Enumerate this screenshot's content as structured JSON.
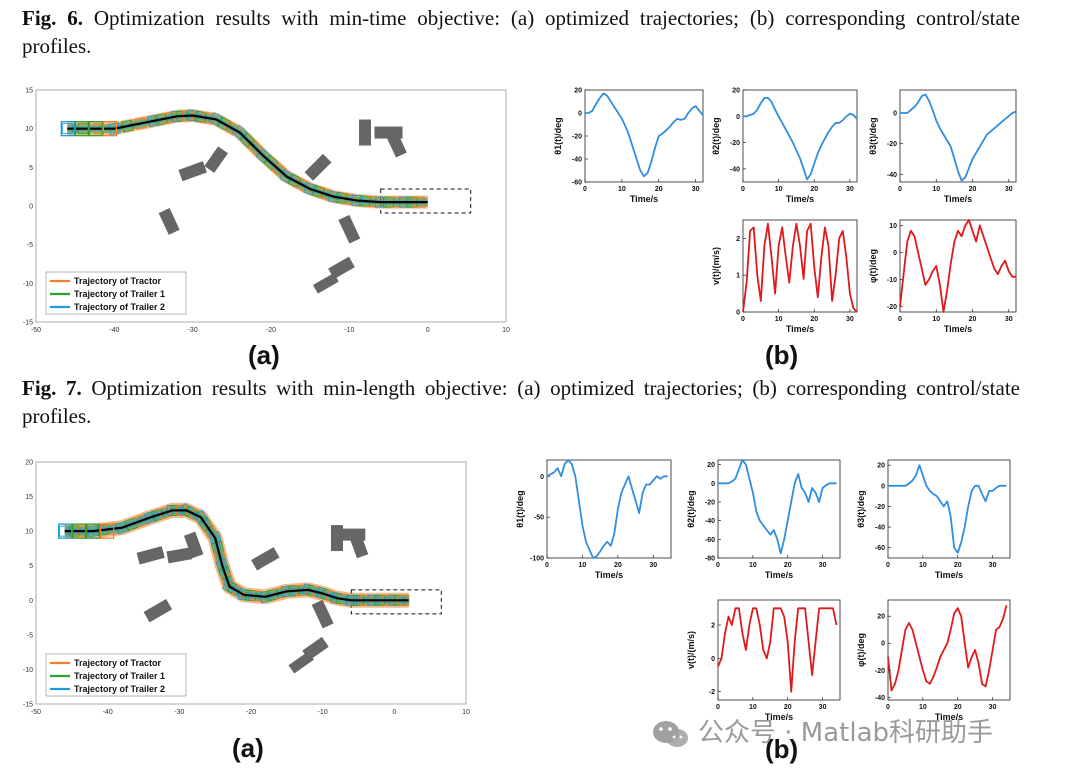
{
  "fig6": {
    "label": "Fig. 6.",
    "text": " Optimization results with min-time objective: (a) optimized trajectories; (b) corresponding control/state profiles.",
    "panel_a": "(a)",
    "panel_b": "(b)"
  },
  "fig7": {
    "label": "Fig. 7.",
    "text": " Optimization results with min-length objective: (a) optimized trajectories; (b) corresponding control/state profiles.",
    "panel_a": "(a)",
    "panel_b": "(b)"
  },
  "watermark": "公众号 · Matlab科研助手",
  "colors": {
    "tractor": "#f07f2a",
    "trailer1": "#2ca02c",
    "trailer2": "#1f9ad6",
    "path": "#000000",
    "obstacle": "#666666",
    "angle": "#2f8ee0",
    "control": "#e0191c"
  },
  "chart_data": [
    {
      "id": "fig6a",
      "type": "line",
      "title": "",
      "xlim": [
        -50,
        10
      ],
      "ylim": [
        -15,
        15
      ],
      "xticks": [
        "-50",
        "-40",
        "-30",
        "-20",
        "-10",
        "0",
        "10"
      ],
      "yticks": [
        "15",
        "10",
        "5",
        "0",
        "-5",
        "-10",
        "-15"
      ],
      "legend": [
        "Trajectory of Tractor",
        "Trajectory of Trailer 1",
        "Trajectory of Trailer 2"
      ],
      "path": {
        "x": [
          -46,
          -40,
          -35,
          -32,
          -30,
          -27,
          -24,
          -21,
          -18,
          -15,
          -12,
          -9,
          -6,
          -3,
          0
        ],
        "y": [
          10,
          10,
          11,
          11.6,
          11.7,
          11.2,
          9.5,
          6.5,
          3.8,
          2.2,
          1.2,
          0.7,
          0.5,
          0.5,
          0.5
        ]
      }
    },
    {
      "id": "fig7a",
      "type": "line",
      "title": "",
      "xlim": [
        -50,
        10
      ],
      "ylim": [
        -15,
        20
      ],
      "xticks": [
        "-50",
        "-40",
        "-30",
        "-20",
        "-10",
        "0",
        "10"
      ],
      "yticks": [
        "20",
        "15",
        "10",
        "5",
        "0",
        "-5",
        "-10",
        "-15"
      ],
      "legend": [
        "Trajectory of Tractor",
        "Trajectory of Trailer 1",
        "Trajectory of Trailer 2"
      ],
      "path": {
        "x": [
          -46,
          -42,
          -38,
          -34,
          -31,
          -29,
          -27,
          -25,
          -24,
          -23,
          -21,
          -18,
          -15,
          -12,
          -10,
          -8,
          -6,
          -3,
          0,
          2
        ],
        "y": [
          10,
          10,
          10.5,
          12,
          13,
          13,
          12,
          9,
          5,
          2,
          0.8,
          0.5,
          1.3,
          1.5,
          1,
          0.3,
          0,
          0,
          0,
          0
        ]
      }
    },
    {
      "id": "fig6b_theta1",
      "type": "line",
      "xlabel": "Time/s",
      "ylabel": "θ1(t)/deg",
      "xlim": [
        0,
        32
      ],
      "ylim": [
        -60,
        20
      ],
      "xticks": [
        "0",
        "10",
        "20",
        "30"
      ],
      "yticks": [
        "20",
        "0",
        "-20",
        "-40",
        "-60"
      ],
      "x": [
        0,
        1,
        2,
        3,
        4,
        5,
        6,
        7,
        8,
        9,
        10,
        11,
        12,
        13,
        14,
        15,
        16,
        17,
        18,
        19,
        20,
        21,
        22,
        23,
        24,
        25,
        26,
        27,
        28,
        29,
        30,
        31,
        32
      ],
      "y": [
        0,
        0,
        2,
        8,
        13,
        17,
        15,
        10,
        5,
        0,
        -5,
        -12,
        -20,
        -30,
        -40,
        -50,
        -55,
        -52,
        -42,
        -30,
        -20,
        -18,
        -15,
        -12,
        -8,
        -5,
        -6,
        -5,
        0,
        4,
        6,
        2,
        -2
      ]
    },
    {
      "id": "fig6b_theta2",
      "type": "line",
      "xlabel": "Time/s",
      "ylabel": "θ2(t)/deg",
      "xlim": [
        0,
        32
      ],
      "ylim": [
        -50,
        20
      ],
      "xticks": [
        "0",
        "10",
        "20",
        "30"
      ],
      "yticks": [
        "20",
        "0",
        "-20",
        "-40"
      ],
      "x": [
        0,
        1,
        2,
        3,
        4,
        5,
        6,
        7,
        8,
        9,
        10,
        11,
        12,
        13,
        14,
        15,
        16,
        17,
        18,
        19,
        20,
        21,
        22,
        23,
        24,
        25,
        26,
        27,
        28,
        29,
        30,
        31,
        32
      ],
      "y": [
        0,
        0,
        1,
        2,
        5,
        10,
        14,
        14,
        11,
        5,
        0,
        -5,
        -10,
        -15,
        -20,
        -26,
        -32,
        -40,
        -48,
        -44,
        -36,
        -28,
        -22,
        -17,
        -12,
        -8,
        -5,
        -5,
        -3,
        0,
        2,
        1,
        -2
      ]
    },
    {
      "id": "fig6b_theta3",
      "type": "line",
      "xlabel": "Time/s",
      "ylabel": "θ3(t)/deg",
      "xlim": [
        0,
        32
      ],
      "ylim": [
        -45,
        15
      ],
      "xticks": [
        "0",
        "10",
        "20",
        "30"
      ],
      "yticks": [
        "0",
        "-20",
        "-40"
      ],
      "x": [
        0,
        1,
        2,
        3,
        4,
        5,
        6,
        7,
        8,
        9,
        10,
        11,
        12,
        13,
        14,
        15,
        16,
        17,
        18,
        19,
        20,
        21,
        22,
        23,
        24,
        25,
        26,
        27,
        28,
        29,
        30,
        31,
        32
      ],
      "y": [
        0,
        0,
        0,
        2,
        4,
        7,
        11,
        12,
        8,
        2,
        -5,
        -10,
        -14,
        -18,
        -22,
        -30,
        -38,
        -44,
        -42,
        -36,
        -30,
        -26,
        -22,
        -18,
        -14,
        -12,
        -10,
        -8,
        -6,
        -4,
        -2,
        0,
        1
      ]
    },
    {
      "id": "fig6b_v",
      "type": "line",
      "xlabel": "Time/s",
      "ylabel": "v(t)/(m/s)",
      "xlim": [
        0,
        32
      ],
      "ylim": [
        0,
        2.5
      ],
      "xticks": [
        "0",
        "10",
        "20",
        "30"
      ],
      "yticks": [
        "2",
        "1",
        "0"
      ],
      "x": [
        0,
        1,
        2,
        3,
        4,
        5,
        6,
        7,
        8,
        9,
        10,
        11,
        12,
        13,
        14,
        15,
        16,
        17,
        18,
        19,
        20,
        21,
        22,
        23,
        24,
        25,
        26,
        27,
        28,
        29,
        30,
        31,
        32
      ],
      "y": [
        0,
        0.8,
        2.2,
        2.3,
        1,
        0.3,
        1.8,
        2.4,
        1.5,
        0.5,
        1.8,
        2.3,
        1.5,
        0.8,
        1.8,
        2.4,
        1.8,
        0.9,
        2.2,
        2.4,
        1.2,
        0.4,
        1.5,
        2.3,
        1.8,
        0.3,
        1,
        2,
        2.2,
        1.5,
        0.5,
        0.1,
        0
      ]
    },
    {
      "id": "fig6b_phi",
      "type": "line",
      "xlabel": "Time/s",
      "ylabel": "φ(t)/deg",
      "xlim": [
        0,
        32
      ],
      "ylim": [
        -22,
        12
      ],
      "xticks": [
        "0",
        "10",
        "20",
        "30"
      ],
      "yticks": [
        "10",
        "0",
        "-10",
        "-20"
      ],
      "x": [
        0,
        1,
        2,
        3,
        4,
        5,
        6,
        7,
        8,
        9,
        10,
        11,
        12,
        13,
        14,
        15,
        16,
        17,
        18,
        19,
        20,
        21,
        22,
        23,
        24,
        25,
        26,
        27,
        28,
        29,
        30,
        31,
        32
      ],
      "y": [
        -20,
        -8,
        4,
        8,
        6,
        0,
        -6,
        -12,
        -10,
        -7,
        -5,
        -12,
        -22,
        -14,
        -4,
        4,
        8,
        6,
        10,
        12,
        8,
        4,
        10,
        6,
        2,
        -2,
        -6,
        -8,
        -5,
        -3,
        -7,
        -9,
        -9
      ]
    },
    {
      "id": "fig7b_theta1",
      "type": "line",
      "xlabel": "Time/s",
      "ylabel": "θ1(t)/deg",
      "xlim": [
        0,
        35
      ],
      "ylim": [
        -100,
        20
      ],
      "xticks": [
        "0",
        "10",
        "20",
        "30"
      ],
      "yticks": [
        "0",
        "-50",
        "-100"
      ],
      "x": [
        0,
        2,
        3,
        4,
        5,
        6,
        7,
        8,
        9,
        10,
        11,
        12,
        13,
        14,
        15,
        16,
        17,
        18,
        19,
        20,
        21,
        22,
        23,
        24,
        25,
        26,
        27,
        28,
        29,
        30,
        31,
        32,
        33,
        34
      ],
      "y": [
        0,
        5,
        10,
        0,
        15,
        20,
        15,
        0,
        -30,
        -60,
        -80,
        -90,
        -100,
        -98,
        -92,
        -85,
        -80,
        -85,
        -70,
        -40,
        -20,
        -10,
        0,
        -15,
        -30,
        -45,
        -20,
        -10,
        -10,
        -5,
        0,
        -3,
        0,
        0
      ]
    },
    {
      "id": "fig7b_theta2",
      "type": "line",
      "xlabel": "Time/s",
      "ylabel": "θ2(t)/deg",
      "xlim": [
        0,
        35
      ],
      "ylim": [
        -80,
        25
      ],
      "xticks": [
        "0",
        "10",
        "20",
        "30"
      ],
      "yticks": [
        "20",
        "0",
        "-20",
        "-40",
        "-60",
        "-80"
      ],
      "x": [
        0,
        2,
        3,
        4,
        5,
        6,
        7,
        8,
        9,
        10,
        11,
        12,
        13,
        14,
        15,
        16,
        17,
        18,
        19,
        20,
        21,
        22,
        23,
        24,
        25,
        26,
        27,
        28,
        29,
        30,
        31,
        32,
        33,
        34
      ],
      "y": [
        0,
        0,
        0,
        2,
        5,
        15,
        25,
        20,
        5,
        -10,
        -30,
        -40,
        -45,
        -50,
        -55,
        -50,
        -60,
        -75,
        -60,
        -40,
        -20,
        0,
        10,
        -5,
        -10,
        -20,
        -5,
        -10,
        -20,
        -5,
        -2,
        0,
        0,
        0
      ]
    },
    {
      "id": "fig7b_theta3",
      "type": "line",
      "xlabel": "Time/s",
      "ylabel": "θ3(t)/deg",
      "xlim": [
        0,
        35
      ],
      "ylim": [
        -70,
        25
      ],
      "xticks": [
        "0",
        "10",
        "20",
        "30"
      ],
      "yticks": [
        "20",
        "0",
        "-20",
        "-40",
        "-60"
      ],
      "x": [
        0,
        2,
        3,
        4,
        5,
        6,
        7,
        8,
        9,
        10,
        11,
        12,
        13,
        14,
        15,
        16,
        17,
        18,
        19,
        20,
        21,
        22,
        23,
        24,
        25,
        26,
        27,
        28,
        29,
        30,
        31,
        32,
        33,
        34
      ],
      "y": [
        0,
        0,
        0,
        0,
        0,
        2,
        5,
        10,
        20,
        10,
        0,
        -5,
        -8,
        -10,
        -15,
        -20,
        -15,
        -30,
        -60,
        -65,
        -55,
        -40,
        -20,
        -5,
        0,
        0,
        -8,
        -15,
        -5,
        -5,
        -2,
        0,
        0,
        0
      ]
    },
    {
      "id": "fig7b_v",
      "type": "line",
      "xlabel": "Time/s",
      "ylabel": "v(t)/(m/s)",
      "xlim": [
        0,
        35
      ],
      "ylim": [
        -2.5,
        3.5
      ],
      "xticks": [
        "0",
        "10",
        "20",
        "30"
      ],
      "yticks": [
        "2",
        "0",
        "-2"
      ],
      "x": [
        0,
        1,
        2,
        3,
        4,
        5,
        6,
        7,
        8,
        9,
        10,
        11,
        12,
        13,
        14,
        15,
        16,
        17,
        18,
        19,
        20,
        21,
        22,
        23,
        24,
        25,
        26,
        27,
        28,
        29,
        30,
        31,
        32,
        33,
        34
      ],
      "y": [
        -0.5,
        0,
        1.5,
        2.5,
        2,
        3,
        3,
        1.5,
        0.5,
        2,
        3,
        3,
        2,
        0.5,
        0,
        1,
        3,
        3,
        3,
        2.5,
        1,
        -2,
        1,
        3,
        3,
        3,
        1,
        -1,
        1,
        3,
        3,
        3,
        3,
        3,
        2
      ]
    },
    {
      "id": "fig7b_phi",
      "type": "line",
      "xlabel": "Time/s",
      "ylabel": "φ(t)/deg",
      "xlim": [
        0,
        35
      ],
      "ylim": [
        -42,
        32
      ],
      "xticks": [
        "0",
        "10",
        "20",
        "30"
      ],
      "yticks": [
        "20",
        "0",
        "-20",
        "-40"
      ],
      "x": [
        0,
        1,
        2,
        3,
        4,
        5,
        6,
        7,
        8,
        9,
        10,
        11,
        12,
        13,
        14,
        15,
        16,
        17,
        18,
        19,
        20,
        21,
        22,
        23,
        24,
        25,
        26,
        27,
        28,
        29,
        30,
        31,
        32,
        33,
        34
      ],
      "y": [
        -10,
        -35,
        -30,
        -20,
        -5,
        10,
        15,
        10,
        0,
        -10,
        -20,
        -28,
        -30,
        -25,
        -18,
        -10,
        -5,
        0,
        10,
        22,
        26,
        20,
        0,
        -18,
        -10,
        -5,
        -15,
        -30,
        -32,
        -20,
        -5,
        10,
        12,
        18,
        28
      ]
    }
  ]
}
